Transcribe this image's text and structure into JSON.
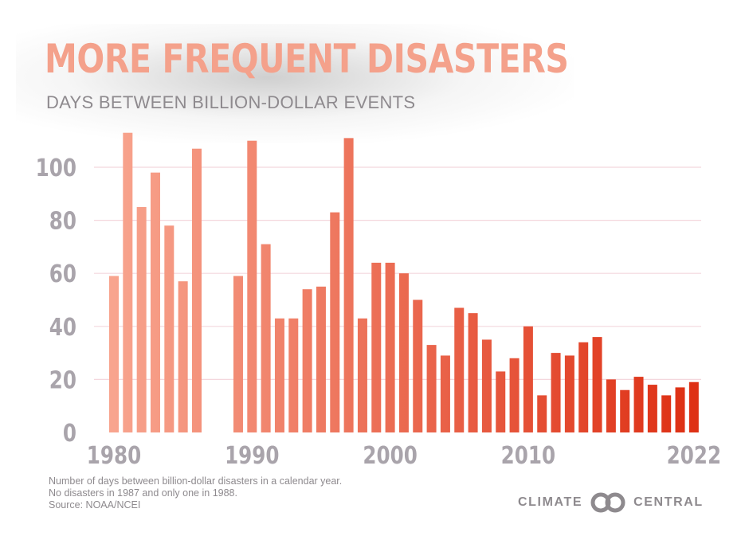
{
  "header": {
    "title": "MORE FREQUENT DISASTERS",
    "subtitle": "DAYS BETWEEN BILLION-DOLLAR EVENTS"
  },
  "footnote": {
    "lines": [
      "Number of days between billion-dollar disasters in a calendar year.",
      "No disasters in 1987 and only one in 1988.",
      "Source: NOAA/NCEI"
    ]
  },
  "logo": {
    "left_text": "CLIMATE",
    "right_text": "CENTRAL"
  },
  "colors": {
    "gradient_start": "#f8a58f",
    "gradient_end": "#de3115",
    "gridline": "#f4d7dd",
    "title": "#f4a18b",
    "axis_text": "#a9a4ab"
  },
  "chart_data": {
    "type": "bar",
    "title": "MORE FREQUENT DISASTERS",
    "subtitle": "DAYS BETWEEN BILLION-DOLLAR EVENTS",
    "xlabel": "",
    "ylabel": "",
    "ylim": [
      0,
      115
    ],
    "yticks": [
      0,
      20,
      40,
      60,
      80,
      100
    ],
    "xtick_labels": [
      "1980",
      "1990",
      "2000",
      "2010",
      "2022"
    ],
    "grid": true,
    "categories": [
      "1980",
      "1981",
      "1982",
      "1983",
      "1984",
      "1985",
      "1986",
      "1987",
      "1988",
      "1989",
      "1990",
      "1991",
      "1992",
      "1993",
      "1994",
      "1995",
      "1996",
      "1997",
      "1998",
      "1999",
      "2000",
      "2001",
      "2002",
      "2003",
      "2004",
      "2005",
      "2006",
      "2007",
      "2008",
      "2009",
      "2010",
      "2011",
      "2012",
      "2013",
      "2014",
      "2015",
      "2016",
      "2017",
      "2018",
      "2019",
      "2020",
      "2021",
      "2022"
    ],
    "values": [
      59,
      113,
      85,
      98,
      78,
      57,
      107,
      null,
      null,
      59,
      110,
      71,
      43,
      43,
      54,
      55,
      83,
      111,
      43,
      64,
      64,
      60,
      50,
      33,
      29,
      47,
      45,
      35,
      23,
      28,
      40,
      14,
      30,
      29,
      34,
      36,
      20,
      16,
      21,
      18,
      14,
      17,
      19
    ]
  }
}
